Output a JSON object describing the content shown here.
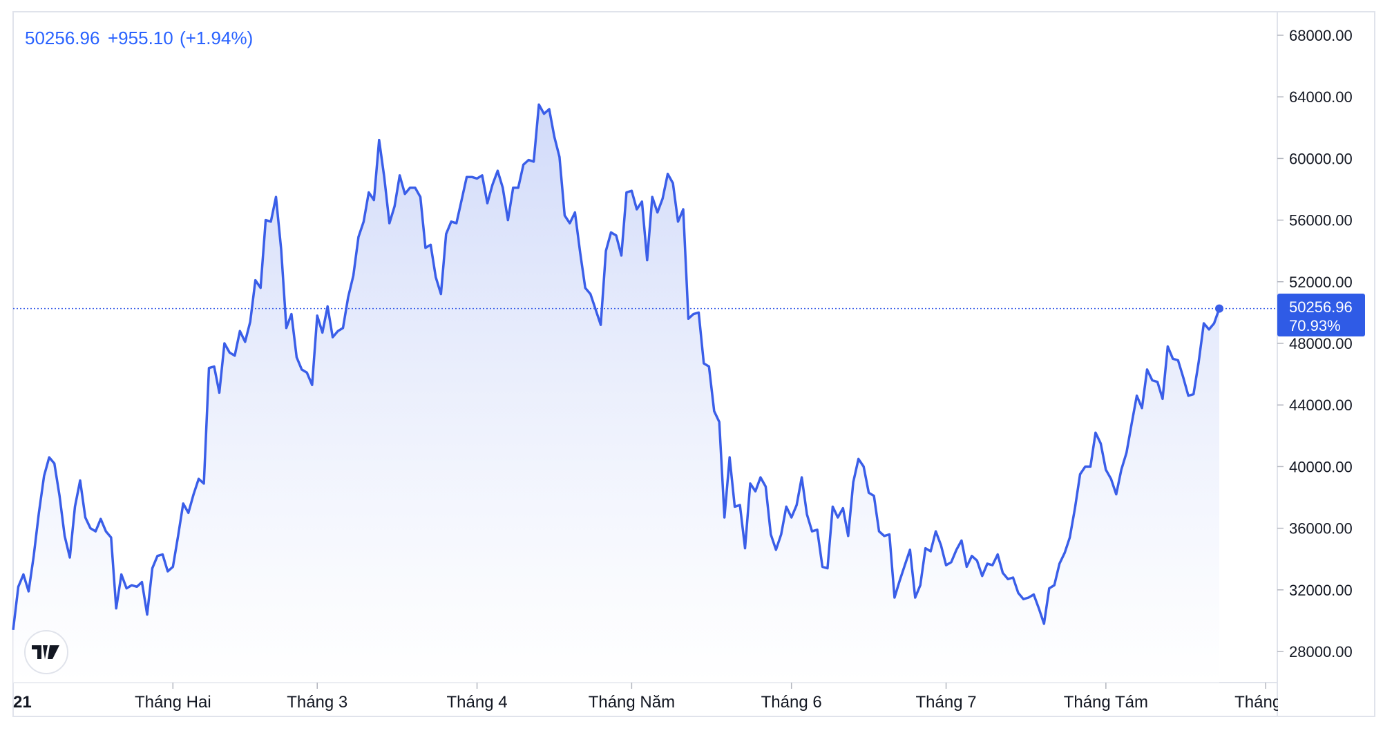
{
  "header": {
    "last_price": "50256.96",
    "change": "+955.10",
    "change_pct": "(+1.94%)"
  },
  "price_label": {
    "value": "50256.96",
    "percent": "70.93%"
  },
  "logo": {
    "icon": "tradingview-logo-icon",
    "text": "TV"
  },
  "colors": {
    "line": "#3a5ee8",
    "header_text": "#2962ff",
    "label_bg": "#2f5be6",
    "fill_top": "#c9d4f8",
    "fill_bottom": "#ffffff",
    "border": "#e0e3eb"
  },
  "chart_data": {
    "type": "area",
    "title": "",
    "xlabel": "",
    "ylabel": "",
    "ylim": [
      26000,
      70000
    ],
    "yticks": [
      28000,
      32000,
      36000,
      40000,
      44000,
      48000,
      52000,
      56000,
      60000,
      64000,
      68000
    ],
    "ytick_labels": [
      "28000.00",
      "32000.00",
      "36000.00",
      "40000.00",
      "44000.00",
      "48000.00",
      "52000.00",
      "56000.00",
      "60000.00",
      "64000.00",
      "68000.00"
    ],
    "xtick_labels": [
      {
        "label": "21",
        "day": 0
      },
      {
        "label": "Tháng Hai",
        "day": 31
      },
      {
        "label": "Tháng 3",
        "day": 59
      },
      {
        "label": "Tháng 4",
        "day": 90
      },
      {
        "label": "Tháng Năm",
        "day": 120
      },
      {
        "label": "Tháng 6",
        "day": 151
      },
      {
        "label": "Tháng 7",
        "day": 181
      },
      {
        "label": "Tháng Tám",
        "day": 212
      },
      {
        "label": "Tháng",
        "day": 243
      }
    ],
    "current_value": 50256.96,
    "series": [
      {
        "values": [
          29400,
          32200,
          33000,
          31900,
          34200,
          37000,
          39400,
          40600,
          40200,
          38100,
          35500,
          34100,
          37400,
          39100,
          36700,
          36000,
          35800,
          36600,
          35800,
          35400,
          30800,
          33000,
          32100,
          32300,
          32200,
          32500,
          30400,
          33400,
          34200,
          34300,
          33200,
          33500,
          35500,
          37600,
          37000,
          38200,
          39200,
          38900,
          46400,
          46500,
          44800,
          48000,
          47400,
          47200,
          48800,
          48100,
          49400,
          52100,
          51600,
          56000,
          55900,
          57500,
          54100,
          49000,
          49900,
          47100,
          46300,
          46100,
          45300,
          49800,
          48700,
          50400,
          48400,
          48800,
          49000,
          51000,
          52400,
          54900,
          55900,
          57800,
          57300,
          61200,
          58800,
          55800,
          56900,
          58900,
          57700,
          58100,
          58100,
          57500,
          54200,
          54400,
          52300,
          51200,
          55100,
          55900,
          55800,
          57300,
          58800,
          58800,
          58700,
          58900,
          57100,
          58300,
          59200,
          58100,
          56000,
          58100,
          58100,
          59600,
          59900,
          59800,
          63500,
          62900,
          63200,
          61400,
          60100,
          56300,
          55800,
          56500,
          53900,
          51600,
          51200,
          50200,
          49200,
          54000,
          55200,
          55000,
          53700,
          57800,
          57900,
          56700,
          57200,
          53400,
          57500,
          56500,
          57400,
          59000,
          58400,
          55900,
          56700,
          49600,
          49900,
          50000,
          46700,
          46500,
          43600,
          42900,
          36700,
          40600,
          37400,
          37500,
          34700,
          38900,
          38400,
          39300,
          38700,
          35600,
          34600,
          35600,
          37400,
          36700,
          37500,
          39300,
          36900,
          35800,
          35900,
          33500,
          33400,
          37400,
          36700,
          37300,
          35500,
          39000,
          40500,
          40000,
          38300,
          38100,
          35800,
          35500,
          35600,
          31500,
          32600,
          33600,
          34600,
          31500,
          32300,
          34700,
          34500,
          35800,
          34900,
          33600,
          33800,
          34600,
          35200,
          33500,
          34200,
          33900,
          32900,
          33700,
          33600,
          34300,
          33100,
          32700,
          32800,
          31800,
          31400,
          31500,
          31700,
          30800,
          29800,
          32100,
          32300,
          33700,
          34400,
          35400,
          37300,
          39500,
          40000,
          40000,
          42200,
          41500,
          39800,
          39200,
          38200,
          39800,
          40900,
          42800,
          44600,
          43800,
          46300,
          45600,
          45500,
          44400,
          47800,
          47000,
          46900,
          45800,
          44600,
          44700,
          46800,
          49300,
          48900,
          49300,
          50257
        ]
      }
    ]
  }
}
